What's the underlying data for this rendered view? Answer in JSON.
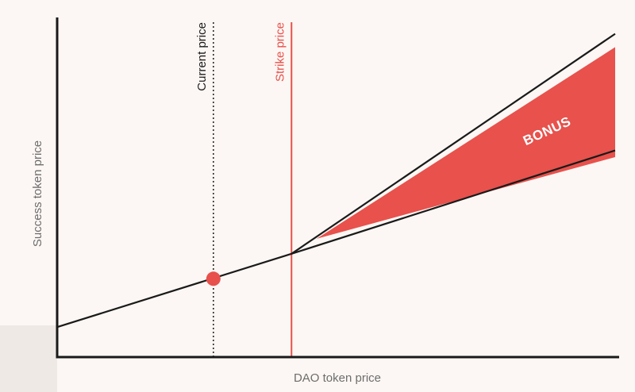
{
  "chart_data": {
    "type": "line",
    "title": "",
    "xlabel": "DAO token price",
    "ylabel": "Success token price",
    "xlim": [
      0,
      100
    ],
    "ylim": [
      0,
      100
    ],
    "grid": false,
    "series": [
      {
        "name": "",
        "x": [
          0,
          42,
          100
        ],
        "y": [
          9,
          31,
          62
        ]
      },
      {
        "name": "",
        "x": [
          42,
          100
        ],
        "y": [
          31,
          97
        ]
      }
    ],
    "vertical_markers": [
      {
        "label": "Current price",
        "x": 28,
        "style": "dotted",
        "color": "#1a1a1a"
      },
      {
        "label": "Strike price",
        "x": 42,
        "style": "solid",
        "color": "#e8504b"
      }
    ],
    "point": {
      "x": 28,
      "y": 23.5,
      "color": "#e8504b"
    },
    "bonus_area": {
      "label": "BONUS",
      "color": "#e8514c",
      "polygon": [
        [
          46.5,
          35.5
        ],
        [
          100,
          60
        ],
        [
          100,
          93
        ]
      ]
    },
    "colors": {
      "axis": "#1a1a1a",
      "line": "#1a1a1a",
      "accent": "#e8504b",
      "background": "#fcf7f4"
    }
  }
}
